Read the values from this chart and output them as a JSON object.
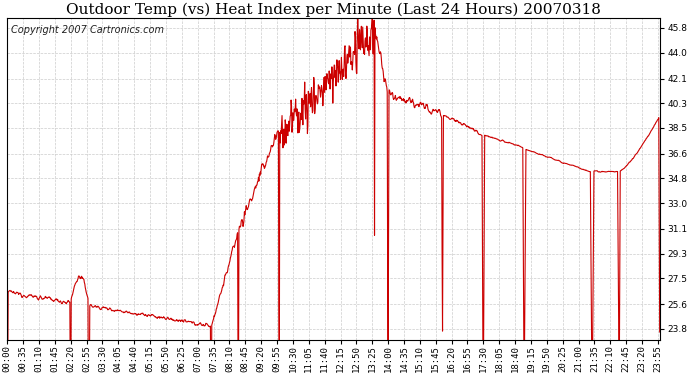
{
  "title": "Outdoor Temp (vs) Heat Index per Minute (Last 24 Hours) 20070318",
  "copyright": "Copyright 2007 Cartronics.com",
  "line_color": "#cc0000",
  "background_color": "#ffffff",
  "grid_color": "#cccccc",
  "yticks": [
    23.8,
    25.6,
    27.5,
    29.3,
    31.1,
    33.0,
    34.8,
    36.6,
    38.5,
    40.3,
    42.1,
    44.0,
    45.8
  ],
  "ylim": [
    23.0,
    46.5
  ],
  "xlim": [
    0,
    1440
  ],
  "xtick_step": 35,
  "title_fontsize": 11,
  "copyright_fontsize": 7,
  "tick_fontsize": 6.5,
  "line_width": 0.8
}
